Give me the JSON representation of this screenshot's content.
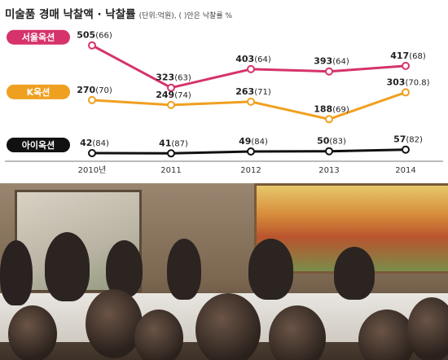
{
  "title": "미술품 경매 낙찰액 · 낙찰률",
  "unit_note": "(단위:억원), ( )안은 낙찰률 %",
  "chart_data": {
    "type": "line",
    "categories": [
      "2010년",
      "2011",
      "2012",
      "2013",
      "2014"
    ],
    "ylim": [
      0,
      560
    ],
    "grid": false,
    "series": [
      {
        "name": "서울옥션",
        "color": "#d6336c",
        "values": [
          505,
          323,
          403,
          393,
          417
        ],
        "rates": [
          "66",
          "63",
          "64",
          "64",
          "68"
        ]
      },
      {
        "name": "K옥션",
        "color": "#f0a020",
        "values": [
          270,
          249,
          263,
          188,
          303
        ],
        "rates": [
          "70",
          "74",
          "71",
          "69",
          "70.8"
        ]
      },
      {
        "name": "아이옥션",
        "color": "#111111",
        "values": [
          42,
          41,
          49,
          50,
          57
        ],
        "rates": [
          "84",
          "87",
          "84",
          "83",
          "82"
        ]
      }
    ]
  }
}
